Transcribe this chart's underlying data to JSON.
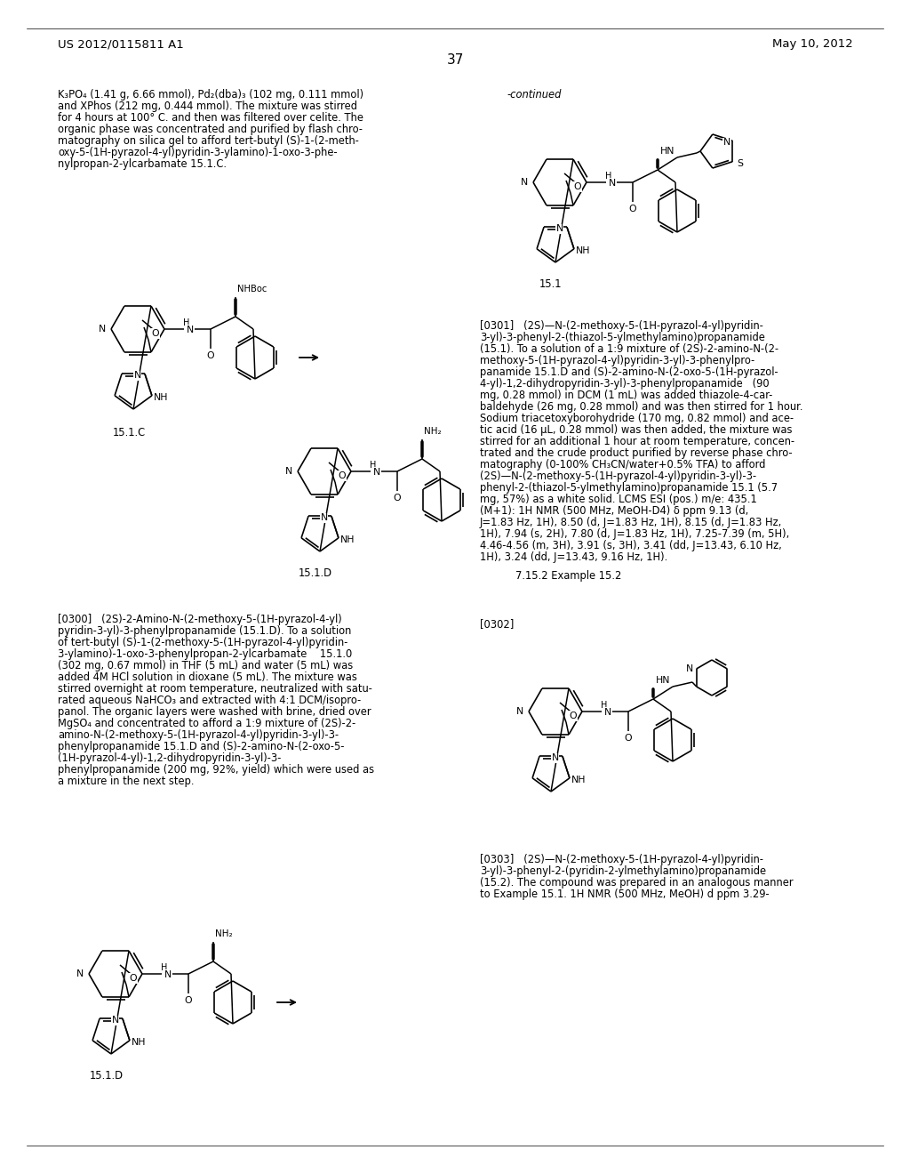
{
  "background_color": "#ffffff",
  "header_left": "US 2012/0115811 A1",
  "header_right": "May 10, 2012",
  "page_number": "37",
  "body_text_size": 8.3,
  "header_text_size": 9.5
}
